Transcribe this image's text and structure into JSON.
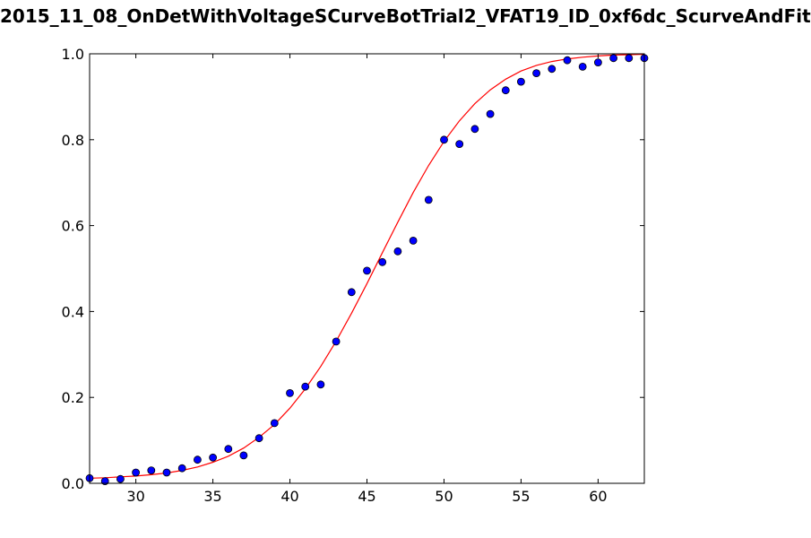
{
  "chart_data": {
    "type": "scatter",
    "title": "2015_11_08_OnDetWithVoltageSCurveBotTrial2_VFAT19_ID_0xf6dc_ScurveAndFit",
    "xlabel": "",
    "ylabel": "",
    "xlim": [
      27,
      63
    ],
    "ylim": [
      0.0,
      1.0
    ],
    "x_ticks": [
      30,
      35,
      40,
      45,
      50,
      55,
      60
    ],
    "y_ticks": [
      "0.0",
      "0.2",
      "0.4",
      "0.6",
      "0.8",
      "1.0"
    ],
    "grid": false,
    "series": [
      {
        "kind": "points",
        "color": "#0000ff",
        "x": [
          27,
          28,
          29,
          30,
          31,
          32,
          33,
          34,
          35,
          36,
          37,
          38,
          39,
          40,
          41,
          42,
          43,
          44,
          45,
          46,
          47,
          48,
          49,
          50,
          51,
          52,
          53,
          54,
          55,
          56,
          57,
          58,
          59,
          60,
          61,
          62,
          63
        ],
        "y": [
          0.012,
          0.005,
          0.01,
          0.025,
          0.03,
          0.025,
          0.035,
          0.055,
          0.06,
          0.08,
          0.065,
          0.105,
          0.14,
          0.21,
          0.225,
          0.23,
          0.33,
          0.445,
          0.495,
          0.515,
          0.54,
          0.565,
          0.66,
          0.8,
          0.79,
          0.825,
          0.86,
          0.915,
          0.935,
          0.955,
          0.965,
          0.985,
          0.97,
          0.98,
          0.99,
          0.99,
          0.99
        ]
      },
      {
        "kind": "fit",
        "color": "#ff0000",
        "x": [
          27,
          28,
          29,
          30,
          31,
          32,
          33,
          34,
          35,
          36,
          37,
          38,
          39,
          40,
          41,
          42,
          43,
          44,
          45,
          46,
          47,
          48,
          49,
          50,
          51,
          52,
          53,
          54,
          55,
          56,
          57,
          58,
          59,
          60,
          61,
          62,
          63
        ],
        "y": [
          0.012,
          0.013,
          0.015,
          0.017,
          0.02,
          0.024,
          0.03,
          0.038,
          0.049,
          0.063,
          0.082,
          0.107,
          0.137,
          0.175,
          0.22,
          0.272,
          0.331,
          0.396,
          0.465,
          0.537,
          0.608,
          0.677,
          0.74,
          0.796,
          0.844,
          0.884,
          0.916,
          0.941,
          0.96,
          0.973,
          0.982,
          0.988,
          0.992,
          0.995,
          0.997,
          0.998,
          0.999
        ]
      }
    ]
  }
}
